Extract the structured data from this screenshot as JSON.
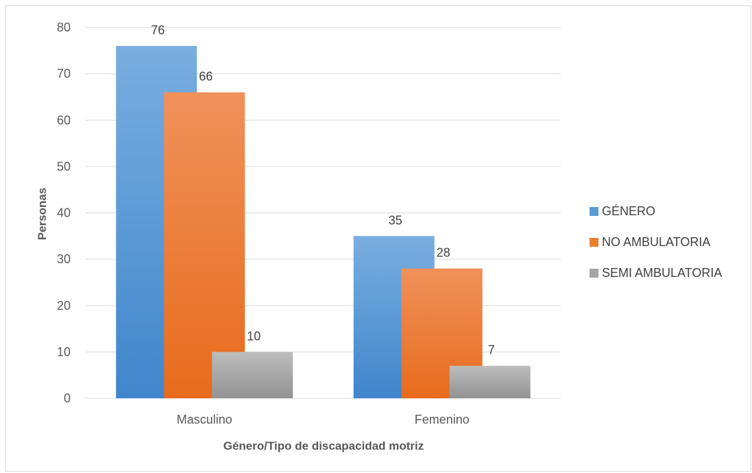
{
  "chart_data": {
    "type": "bar",
    "categories": [
      "Masculino",
      "Femenino"
    ],
    "series": [
      {
        "name": "GÉNERO",
        "values": [
          76,
          35
        ],
        "color": "#5b9bd5"
      },
      {
        "name": "NO AMBULATORIA",
        "values": [
          66,
          28
        ],
        "color": "#ed7d31"
      },
      {
        "name": "SEMI AMBULATORIA",
        "values": [
          10,
          7
        ],
        "color": "#a5a5a5"
      }
    ],
    "title": "",
    "xlabel": "Género/Tipo de discapacidad motriz",
    "ylabel": "Personas",
    "ylim": [
      0,
      80
    ],
    "yticks": [
      0,
      10,
      20,
      30,
      40,
      50,
      60,
      70,
      80
    ],
    "grid": true,
    "legend_position": "right",
    "data_labels": true
  }
}
